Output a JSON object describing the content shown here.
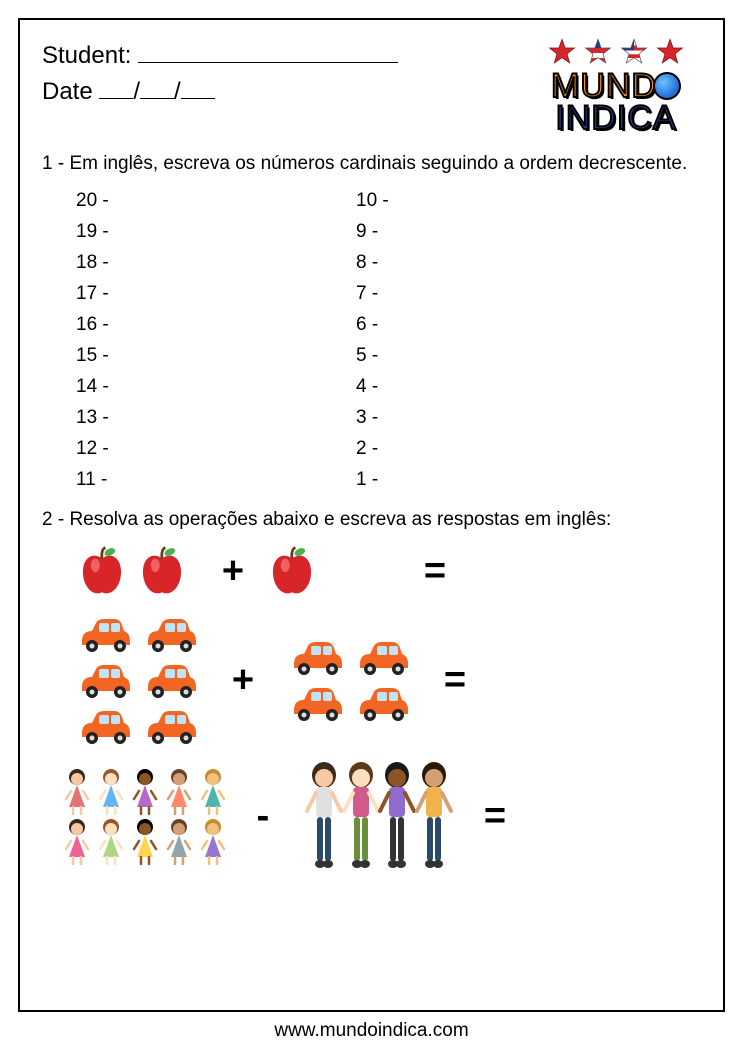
{
  "header": {
    "student_label": "Student:",
    "date_label": "Date",
    "date_sep": "/"
  },
  "logo": {
    "line1": "MUND",
    "line2": "INDICA"
  },
  "q1": {
    "prompt": "1 - Em inglês, escreva os números cardinais seguindo a ordem decrescente.",
    "left_col": [
      "20 -",
      "19 -",
      "18 -",
      "17 -",
      "16 -",
      "15 -",
      "14 -",
      "13 -",
      "12 -",
      "11 -"
    ],
    "right_col": [
      "10 -",
      "9 -",
      "8 -",
      "7 -",
      "6 -",
      "5 -",
      "4 -",
      "3 -",
      "2 -",
      "1 -"
    ]
  },
  "q2": {
    "prompt": "2 - Resolva as operações abaixo e escreva as respostas em inglês:",
    "ops": [
      {
        "left_icon": "apple",
        "left_count": 2,
        "op": "+",
        "right_icon": "apple",
        "right_count": 1,
        "eq": "="
      },
      {
        "left_icon": "car",
        "left_count": 6,
        "op": "+",
        "right_icon": "car",
        "right_count": 4,
        "eq": "="
      },
      {
        "left_icon": "girl-small",
        "left_count": 10,
        "op": "-",
        "right_icon": "girl-group4",
        "right_count": 4,
        "eq": "="
      }
    ]
  },
  "colors": {
    "apple_red": "#d8252a",
    "apple_leaf": "#4caf50",
    "apple_stem": "#6b3d1a",
    "car_body": "#f26522",
    "car_wheel": "#222222",
    "car_window": "#bfe3f7",
    "girl_skin": [
      "#f7c9a3",
      "#ffe0bd",
      "#8d5524",
      "#d2a074",
      "#f1c27d"
    ],
    "girl_dress": [
      "#e57373",
      "#64b5f6",
      "#ba68c8",
      "#ff8a65",
      "#4db6ac",
      "#f06292",
      "#aed581",
      "#ffd54f",
      "#90a4ae",
      "#9575cd"
    ],
    "girl_hair": [
      "#3b2a1a",
      "#a0522d",
      "#000000",
      "#6b4226",
      "#c98b2d"
    ],
    "star_red": "#d8252a",
    "star_blue": "#1e3a8a"
  },
  "footer": {
    "url": "www.mundoindica.com"
  }
}
